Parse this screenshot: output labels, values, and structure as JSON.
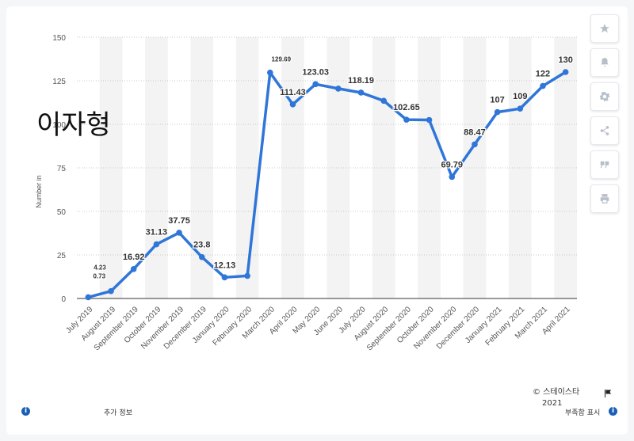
{
  "chart_data": {
    "type": "line",
    "ylabel": "Number in",
    "ylim": [
      0,
      150
    ],
    "yticks": [
      0,
      25,
      50,
      75,
      100,
      125,
      150
    ],
    "x": [
      "July 2019",
      "August 2019",
      "September 2019",
      "October 2019",
      "November 2019",
      "December 2019",
      "January 2020",
      "February 2020",
      "March 2020",
      "April 2020",
      "May 2020",
      "June 2020",
      "July 2020",
      "August 2020",
      "September 2020",
      "October 2020",
      "November 2020",
      "December 2020",
      "January 2021",
      "February 2021",
      "March 2021",
      "April 2021"
    ],
    "xtick_labels": [
      "July 2019",
      "August 2019",
      "September 2019",
      "October 2019",
      "November 2019",
      "December 2019",
      "January 2020",
      "February 2020",
      "March 2020",
      "April 2020",
      "May 2020",
      "June 2020",
      "July 2020",
      "August 2020",
      "September 2020",
      "October 2020",
      "November 2020",
      "December 2020",
      "January 2021",
      "February 2021",
      "March 2021",
      "April 2021"
    ],
    "values": [
      0.73,
      4.23,
      16.92,
      31.13,
      37.75,
      23.8,
      12.13,
      13,
      129.69,
      111.43,
      123.03,
      120.5,
      118.19,
      113.5,
      102.65,
      102.5,
      69.79,
      88.47,
      107,
      109,
      122,
      130
    ],
    "data_labels": [
      {
        "i": 1,
        "text": "4.23"
      },
      {
        "i": 0,
        "text": "0.73"
      },
      {
        "i": 2,
        "text": "16.92"
      },
      {
        "i": 3,
        "text": "31.13"
      },
      {
        "i": 4,
        "text": "37.75"
      },
      {
        "i": 5,
        "text": "23.8"
      },
      {
        "i": 6,
        "text": "12.13"
      },
      {
        "i": 8,
        "text": "129.69"
      },
      {
        "i": 9,
        "text": "111.43"
      },
      {
        "i": 10,
        "text": "123.03"
      },
      {
        "i": 12,
        "text": "118.19"
      },
      {
        "i": 14,
        "text": "102.65"
      },
      {
        "i": 16,
        "text": "69.79"
      },
      {
        "i": 17,
        "text": "88.47"
      },
      {
        "i": 18,
        "text": "107"
      },
      {
        "i": 19,
        "text": "109"
      },
      {
        "i": 20,
        "text": "122"
      },
      {
        "i": 21,
        "text": "130"
      }
    ],
    "grid": true,
    "line_color": "#2f76d8",
    "band_color": "#f3f3f3"
  },
  "overlay_text": "이자형",
  "footer": {
    "extra_info": "추가 정보",
    "source_line1": "© 스테이스타",
    "source_line2": "2021",
    "report": "부족함 표시"
  },
  "toolbar_icons": [
    "star-icon",
    "bell-icon",
    "gear-icon",
    "share-icon",
    "quote-icon",
    "print-icon"
  ]
}
